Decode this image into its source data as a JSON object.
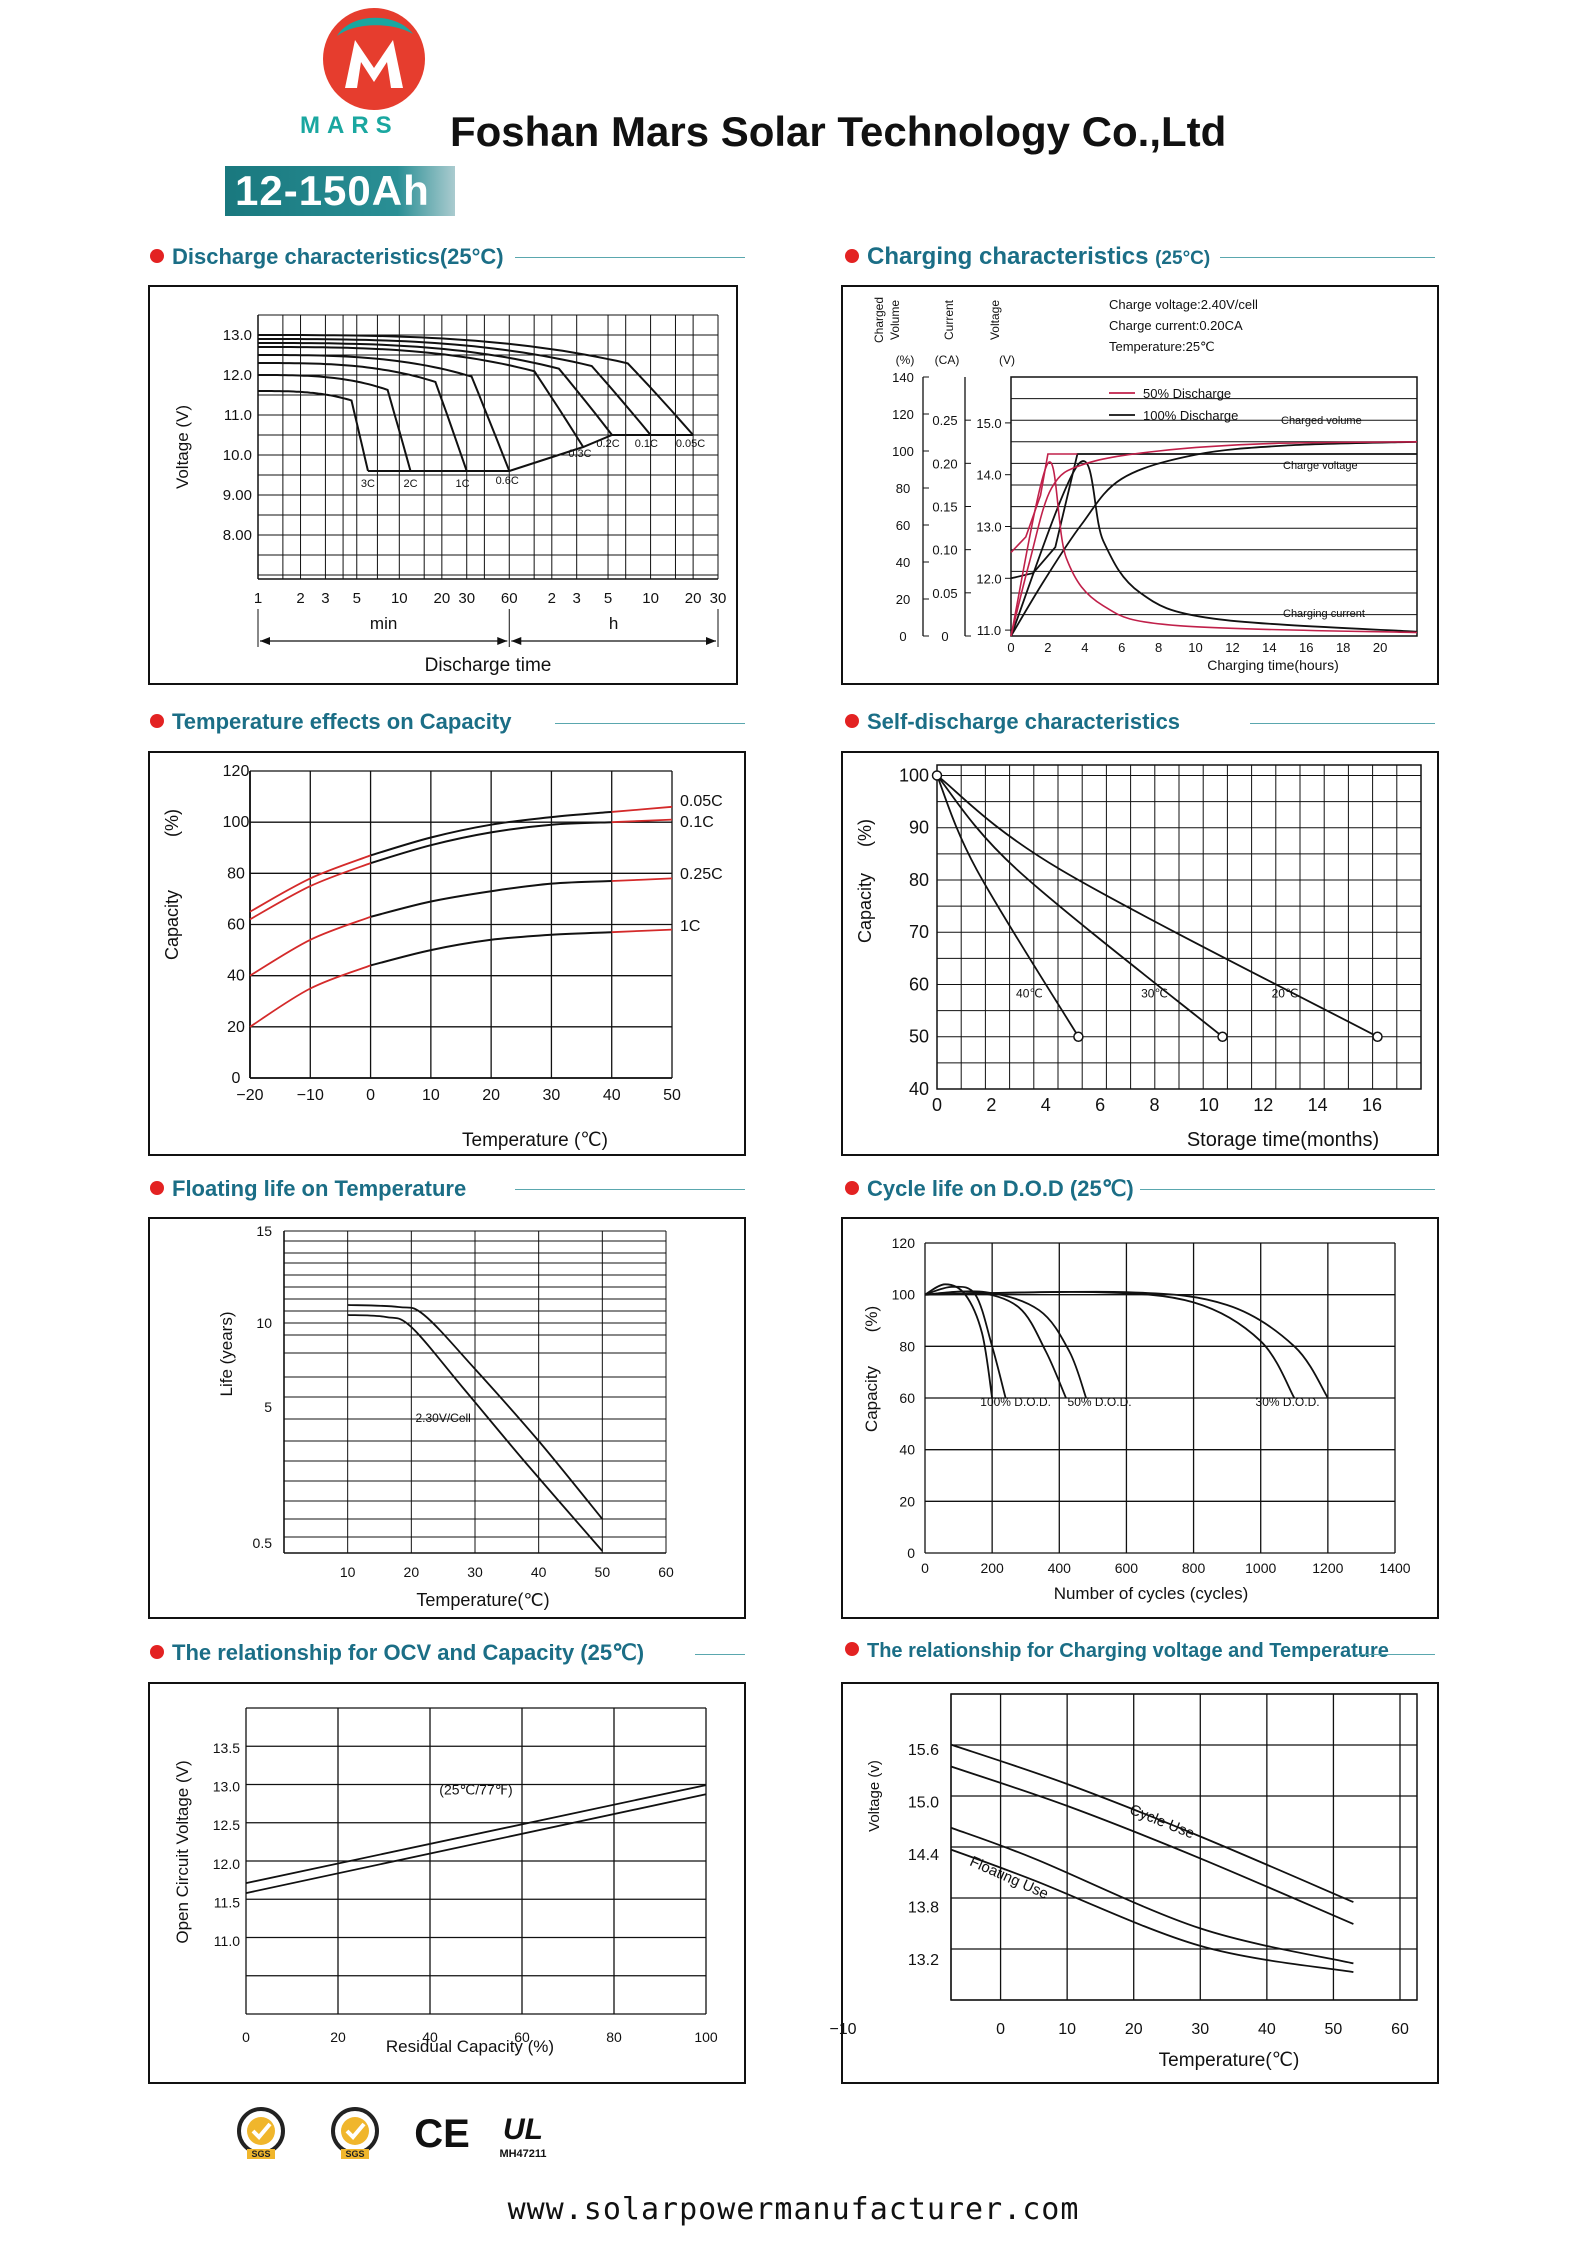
{
  "header": {
    "brand": "MARS",
    "company": "Foshan Mars Solar Technology Co.,Ltd",
    "model": "12-150Ah",
    "logo_letter": "M",
    "colors": {
      "accent": "#1aa7a0",
      "red": "#e32222",
      "heading": "#1b6e86"
    }
  },
  "sections": {
    "discharge": {
      "title": "Discharge characteristics(25°C)"
    },
    "charging": {
      "title": "Charging characteristics",
      "title_suffix": "(25°C)"
    },
    "temperature": {
      "title": "Temperature effects on Capacity"
    },
    "selfdischarge": {
      "title": "Self-discharge characteristics"
    },
    "floating": {
      "title": "Floating life on Temperature"
    },
    "cycle": {
      "title": "Cycle life on D.O.D (25℃)"
    },
    "ocv": {
      "title": "The relationship  for OCV and Capacity (25℃)"
    },
    "chargevolt": {
      "title": "The relationship for Charging voltage and Temperature"
    }
  },
  "chart_data": [
    {
      "id": "discharge",
      "type": "line",
      "ylabel": "Voltage (V)",
      "xlabel": "Discharge time",
      "yticks": [
        "13.0",
        "12.0",
        "11.0",
        "10.0",
        "9.00",
        "8.00"
      ],
      "xticks": [
        "1",
        "2",
        "3",
        "5",
        "10",
        "20",
        "30",
        "60",
        "2",
        "3",
        "5",
        "10",
        "20",
        "30"
      ],
      "x_unit_labels": [
        "min",
        "h"
      ],
      "series_labels": [
        "3C",
        "2C",
        "1C",
        "0.6C",
        "0.3C",
        "0.2C",
        "0.1C",
        "0.05C"
      ]
    },
    {
      "id": "charging",
      "type": "line",
      "axis_titles": [
        "Charged Volume",
        "Current",
        "Voltage"
      ],
      "axis_units": [
        "(%)",
        "(CA)",
        "(V)"
      ],
      "y1ticks": [
        "140",
        "120",
        "100",
        "80",
        "60",
        "40",
        "20",
        "0"
      ],
      "y2ticks": [
        "0.25",
        "0.20",
        "0.15",
        "0.10",
        "0.05",
        "0"
      ],
      "y3ticks": [
        "15.0",
        "14.0",
        "13.0",
        "12.0",
        "11.0"
      ],
      "xticks": [
        "0",
        "2",
        "4",
        "6",
        "8",
        "10",
        "12",
        "14",
        "16",
        "18",
        "20"
      ],
      "xlabel": "Charging time(hours)",
      "info": [
        "Charge voltage:2.40V/cell",
        "Charge current:0.20CA",
        "Temperature:25℃"
      ],
      "legend": [
        "50% Discharge",
        "100% Discharge"
      ],
      "annotations": [
        "Charged volume",
        "Charge voltage",
        "Charging current"
      ],
      "colors": {
        "discharge_50": "#c0204a",
        "discharge_100": "#111111"
      }
    },
    {
      "id": "temperature",
      "type": "line",
      "ylabel": "Capacity",
      "ylabel_unit": "(%)",
      "xlabel": "Temperature (℃)",
      "yticks": [
        "120",
        "100",
        "80",
        "60",
        "40",
        "20",
        "0"
      ],
      "xticks": [
        "−20",
        "−10",
        "0",
        "10",
        "20",
        "30",
        "40",
        "50"
      ],
      "series": [
        {
          "name": "0.05C",
          "x": [
            -20,
            -10,
            0,
            10,
            20,
            30,
            40,
            50
          ],
          "values": [
            65,
            78,
            87,
            94,
            99,
            102,
            104,
            106
          ]
        },
        {
          "name": "0.1C",
          "x": [
            -20,
            -10,
            0,
            10,
            20,
            30,
            40,
            50
          ],
          "values": [
            62,
            75,
            84,
            91,
            96,
            99,
            100,
            101
          ]
        },
        {
          "name": "0.25C",
          "x": [
            -20,
            -10,
            0,
            10,
            20,
            30,
            40,
            50
          ],
          "values": [
            40,
            54,
            63,
            69,
            73,
            76,
            77,
            78
          ]
        },
        {
          "name": "1C",
          "x": [
            -20,
            -10,
            0,
            10,
            20,
            30,
            40,
            50
          ],
          "values": [
            20,
            35,
            44,
            50,
            54,
            56,
            57,
            58
          ]
        }
      ],
      "colors": {
        "warm": "#111111",
        "cold": "#d42a2a"
      }
    },
    {
      "id": "selfdischarge",
      "type": "line",
      "ylabel": "Capacity",
      "ylabel_unit": "(%)",
      "xlabel": "Storage time(months)",
      "yticks": [
        "100",
        "90",
        "80",
        "70",
        "60",
        "50",
        "40"
      ],
      "xticks": [
        "0",
        "2",
        "4",
        "6",
        "8",
        "10",
        "12",
        "14",
        "16"
      ],
      "series": [
        {
          "name": "40℃",
          "x": [
            0,
            5.2
          ],
          "values": [
            100,
            50
          ]
        },
        {
          "name": "30℃",
          "x": [
            0,
            10.5
          ],
          "values": [
            100,
            50
          ]
        },
        {
          "name": "20℃",
          "x": [
            0,
            16.2
          ],
          "values": [
            100,
            50
          ]
        }
      ]
    },
    {
      "id": "floating",
      "type": "line",
      "ylabel": "Life (years)",
      "xlabel": "Temperature(℃)",
      "yticks": [
        "15",
        "10",
        "5",
        "0.5"
      ],
      "xticks": [
        "10",
        "20",
        "30",
        "40",
        "50",
        "60"
      ],
      "annotation": "2.30V/Cell"
    },
    {
      "id": "cycle",
      "type": "line",
      "ylabel": "Capacity",
      "ylabel_unit": "(%)",
      "xlabel": "Number of cycles (cycles)",
      "yticks": [
        "120",
        "100",
        "80",
        "60",
        "40",
        "20",
        "0"
      ],
      "xticks": [
        "0",
        "200",
        "400",
        "600",
        "800",
        "1000",
        "1200",
        "1400"
      ],
      "labels": [
        "100% D.O.D.",
        "50% D.O.D.",
        "30% D.O.D."
      ]
    },
    {
      "id": "ocv",
      "type": "line",
      "ylabel": "Open Circuit Voltage (V)",
      "xlabel": "Residual Capacity (%)",
      "yticks": [
        "13.5",
        "13.0",
        "12.5",
        "12.0",
        "11.5",
        "11.0"
      ],
      "xticks": [
        "0",
        "20",
        "40",
        "60",
        "80",
        "100"
      ],
      "annotation": "(25℃/77℉)"
    },
    {
      "id": "chargevolt",
      "type": "line",
      "ylabel": "Voltage (v)",
      "xlabel": "Temperature(℃)",
      "yticks": [
        "15.6",
        "15.0",
        "14.4",
        "13.8",
        "13.2"
      ],
      "xticks": [
        "−10",
        "0",
        "10",
        "20",
        "30",
        "40",
        "50",
        "60"
      ],
      "labels": [
        "Cycle Use",
        "Floating Use"
      ]
    }
  ],
  "certifications": {
    "items": [
      "SGS",
      "SGS",
      "CE",
      "UL"
    ],
    "ul_code": "MH47211"
  },
  "footer": {
    "url": "www.solarpowermanufacturer.com"
  }
}
